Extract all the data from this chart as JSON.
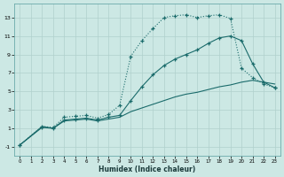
{
  "xlabel": "Humidex (Indice chaleur)",
  "bg_color": "#cce8e4",
  "line_color": "#1a6b6b",
  "grid_color": "#b0d0cc",
  "xlim": [
    -0.5,
    23.5
  ],
  "ylim": [
    -2,
    14.5
  ],
  "xticks": [
    0,
    1,
    2,
    3,
    4,
    5,
    6,
    7,
    8,
    9,
    10,
    11,
    12,
    13,
    14,
    15,
    16,
    17,
    18,
    19,
    20,
    21,
    22,
    23
  ],
  "yticks": [
    -1,
    1,
    3,
    5,
    7,
    9,
    11,
    13
  ],
  "line1_dotted": {
    "x": [
      0,
      2,
      3,
      4,
      5,
      6,
      7,
      8,
      9,
      10,
      11,
      12,
      13,
      14,
      15,
      16,
      17,
      18,
      19,
      20,
      21,
      22,
      23
    ],
    "y": [
      -0.8,
      1.2,
      1.1,
      2.2,
      2.3,
      2.4,
      2.1,
      2.5,
      3.5,
      8.8,
      10.5,
      11.8,
      13.0,
      13.2,
      13.3,
      13.0,
      13.2,
      13.3,
      12.9,
      7.5,
      6.5,
      5.8,
      5.4
    ]
  },
  "line2_solid": {
    "x": [
      0,
      2,
      3,
      4,
      5,
      6,
      7,
      8,
      9,
      10,
      11,
      12,
      13,
      14,
      15,
      16,
      17,
      18,
      19,
      20,
      21,
      22,
      23
    ],
    "y": [
      -0.8,
      1.1,
      1.0,
      1.9,
      2.0,
      2.1,
      1.9,
      2.2,
      2.4,
      4.0,
      5.5,
      6.8,
      7.8,
      8.5,
      9.0,
      9.5,
      10.2,
      10.8,
      11.0,
      10.5,
      8.0,
      6.0,
      5.4
    ]
  },
  "line3_linear": {
    "x": [
      0,
      2,
      3,
      4,
      5,
      6,
      7,
      8,
      9,
      10,
      11,
      12,
      13,
      14,
      15,
      16,
      17,
      18,
      19,
      20,
      21,
      22,
      23
    ],
    "y": [
      -0.8,
      1.2,
      1.0,
      1.8,
      1.9,
      2.0,
      1.8,
      2.0,
      2.2,
      2.8,
      3.2,
      3.6,
      4.0,
      4.4,
      4.7,
      4.9,
      5.2,
      5.5,
      5.7,
      6.0,
      6.2,
      6.0,
      5.8
    ]
  }
}
